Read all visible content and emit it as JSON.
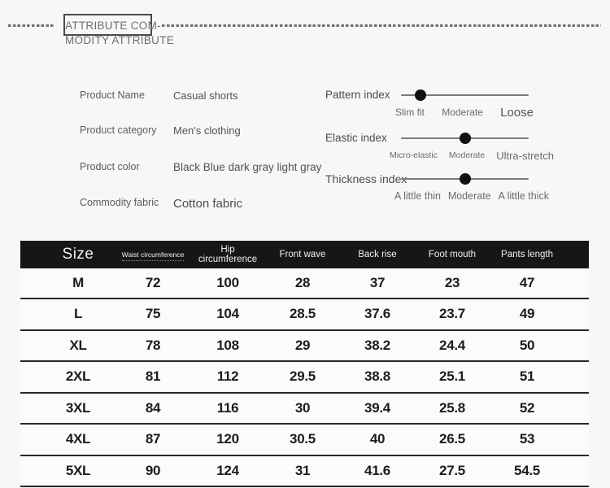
{
  "header": {
    "title_line1": "ATTRIBUTE COM-",
    "title_line2": "MODITY ATTRIBUTE"
  },
  "attributes": [
    {
      "label": "Product Name",
      "value": "Casual shorts"
    },
    {
      "label": "Product category",
      "value": "Men's clothing"
    },
    {
      "label": "Product color",
      "value": "Black Blue dark gray light gray"
    },
    {
      "label": "Commodity fabric",
      "value": "Cotton fabric"
    }
  ],
  "sliders": [
    {
      "label": "Pattern index",
      "value_pct": "15%",
      "ticks": [
        "Slim fit",
        "Moderate",
        "Loose"
      ]
    },
    {
      "label": "Elastic index",
      "value_pct": "50%",
      "ticks": [
        "Micro-elastic",
        "Moderate",
        "Ultra-stretch"
      ]
    },
    {
      "label": "Thickness index",
      "value_pct": "50%",
      "ticks": [
        "A little thin",
        "Moderate",
        "A little thick"
      ]
    }
  ],
  "size_table": {
    "columns": [
      "Size",
      "Waist circumference",
      "Hip circumference",
      "Front wave",
      "Back rise",
      "Foot mouth",
      "Pants length"
    ],
    "rows": [
      [
        "M",
        "72",
        "100",
        "28",
        "37",
        "23",
        "47"
      ],
      [
        "L",
        "75",
        "104",
        "28.5",
        "37.6",
        "23.7",
        "49"
      ],
      [
        "XL",
        "78",
        "108",
        "29",
        "38.2",
        "24.4",
        "50"
      ],
      [
        "2XL",
        "81",
        "112",
        "29.5",
        "38.8",
        "25.1",
        "51"
      ],
      [
        "3XL",
        "84",
        "116",
        "30",
        "39.4",
        "25.8",
        "52"
      ],
      [
        "4XL",
        "87",
        "120",
        "30.5",
        "40",
        "26.5",
        "53"
      ],
      [
        "5XL",
        "90",
        "124",
        "31",
        "41.6",
        "27.5",
        "54.5"
      ]
    ]
  },
  "colors": {
    "table_header_bg": "#161616",
    "row_separator": "#282828",
    "slider_dot": "#111111",
    "slider_track": "#7a7a7a",
    "dash_line": "#6e6e6e",
    "page_bg": "#f7f7f6"
  }
}
